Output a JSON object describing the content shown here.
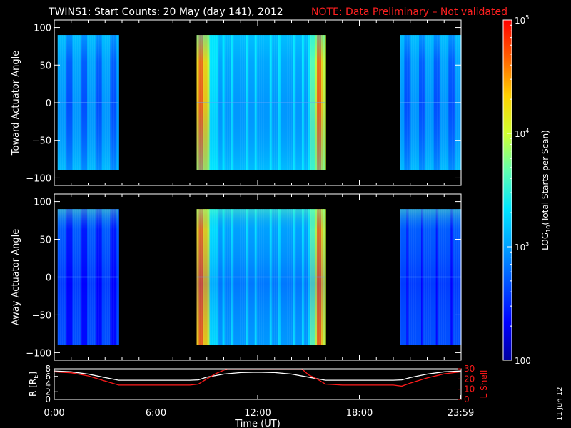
{
  "header": {
    "title": "TWINS1: Start Counts: 20 May (day 141), 2012",
    "note": "NOTE: Data Preliminary – Not validated",
    "title_color": "#ffffff",
    "note_color": "#ff2020"
  },
  "side_stamp": "11 Jun 12",
  "chart_data": [
    {
      "type": "heatmap",
      "name": "toward",
      "ylabel": "Toward Actuator Angle",
      "ylim": [
        -110,
        110
      ],
      "yticks": [
        100,
        50,
        0,
        -50,
        -100
      ],
      "ytick_labels": [
        "100",
        "50",
        "0",
        "−50",
        "−100"
      ],
      "angle_range": [
        -90,
        90
      ],
      "segments": [
        {
          "start_hr": 0.2,
          "end_hr": 3.8,
          "level": 2.85
        },
        {
          "start_hr": 8.4,
          "end_hr": 16.0,
          "level": 3.3
        },
        {
          "start_hr": 20.4,
          "end_hr": 24.0,
          "level": 2.85
        }
      ]
    },
    {
      "type": "heatmap",
      "name": "away",
      "ylabel": "Away Actuator Angle",
      "ylim": [
        -110,
        110
      ],
      "yticks": [
        100,
        50,
        0,
        -50,
        -100
      ],
      "ytick_labels": [
        "100",
        "50",
        "0",
        "−50",
        "−100"
      ],
      "angle_range": [
        -90,
        90
      ],
      "segments": [
        {
          "start_hr": 0.2,
          "end_hr": 3.8,
          "level": 2.55
        },
        {
          "start_hr": 8.4,
          "end_hr": 16.0,
          "level": 3.2
        },
        {
          "start_hr": 20.4,
          "end_hr": 24.0,
          "level": 2.6
        }
      ]
    },
    {
      "type": "line",
      "name": "orbit",
      "xlabel": "Time (UT)",
      "x_tick_hours": [
        0,
        6,
        12,
        18,
        23.98
      ],
      "x_tick_labels": [
        "0:00",
        "6:00",
        "12:00",
        "18:00",
        "23:59"
      ],
      "xlim": [
        0,
        24
      ],
      "left_axis": {
        "label_main": "R [R",
        "label_sub": "E",
        "label_end": "]",
        "ylim": [
          0,
          8
        ],
        "ticks": [
          0,
          2,
          4,
          6,
          8
        ],
        "tick_labels": [
          "0",
          "2",
          "4",
          "6",
          "8"
        ]
      },
      "right_axis": {
        "label": "L Shell",
        "ylim": [
          0,
          30
        ],
        "ticks": [
          0,
          10,
          20,
          30
        ],
        "tick_labels": [
          "0",
          "10",
          "20",
          "30"
        ]
      },
      "series": [
        {
          "color": "#ffffff",
          "axis": "left",
          "x": [
            0,
            1,
            2,
            3,
            3.8,
            5,
            6,
            7,
            8,
            8.5,
            9,
            10,
            11,
            12,
            13,
            14,
            15,
            16,
            17,
            18,
            19,
            20,
            20.5,
            21,
            22,
            23,
            24
          ],
          "y": [
            7.4,
            7.2,
            6.6,
            5.7,
            5.0,
            5.0,
            5.0,
            5.0,
            5.0,
            5.1,
            5.8,
            6.6,
            7.0,
            7.1,
            7.0,
            6.6,
            5.8,
            5.0,
            5.0,
            5.0,
            5.0,
            5.0,
            5.1,
            5.7,
            6.6,
            7.2,
            7.4
          ]
        },
        {
          "color": "#ff1a1a",
          "axis": "right",
          "x": [
            0,
            1,
            2,
            3,
            3.8,
            5,
            6,
            7,
            8,
            8.5,
            9,
            9.5,
            10.2,
            14.6,
            15,
            15.5,
            16,
            17,
            18,
            19,
            20,
            20.5,
            21,
            22,
            23,
            24
          ],
          "y": [
            27,
            26,
            23,
            18,
            14,
            14,
            14,
            14,
            14,
            15,
            20,
            25,
            30,
            30,
            24,
            20,
            15,
            14,
            14,
            14,
            14,
            13,
            16,
            21,
            25,
            27
          ]
        }
      ]
    }
  ],
  "colorbar": {
    "label": "LOG",
    "label_sub": "10",
    "label_tail": "(Total Starts per Scan)",
    "min": 100,
    "max": 100000,
    "ticks": [
      {
        "value": 100000,
        "base": "10",
        "exp": "5"
      },
      {
        "value": 10000,
        "base": "10",
        "exp": "4"
      },
      {
        "value": 1000,
        "base": "10",
        "exp": "3"
      },
      {
        "value": 100,
        "base": "100",
        "exp": ""
      }
    ],
    "colors": [
      "#0000a0",
      "#0000ff",
      "#0050ff",
      "#00a0ff",
      "#00e6ff",
      "#60ffb0",
      "#d0ff30",
      "#ffd000",
      "#ff6000",
      "#ff0000"
    ]
  }
}
